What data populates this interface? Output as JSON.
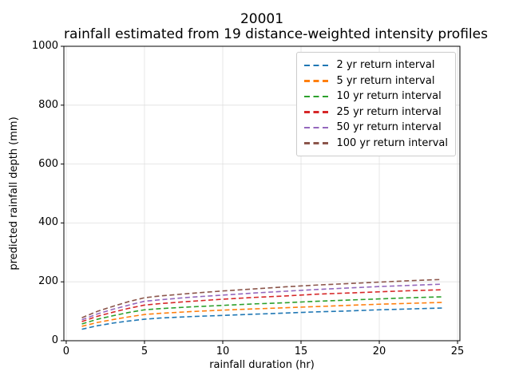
{
  "title": {
    "line1": "20001",
    "line2": "rainfall estimated from 19 distance-weighted intensity profiles"
  },
  "chart_data": {
    "type": "line",
    "title": "20001\nrainfall estimated from 19 distance-weighted intensity profiles",
    "xlabel": "rainfall duration (hr)",
    "ylabel": "predicted rainfall depth (mm)",
    "xlim": [
      -0.15,
      25.15
    ],
    "ylim": [
      0,
      1000
    ],
    "xticks": [
      0,
      5,
      10,
      15,
      20,
      25
    ],
    "yticks": [
      0,
      200,
      400,
      600,
      800,
      1000
    ],
    "grid": true,
    "grid_color": "#e0e0e0",
    "line_style": "dashed",
    "legend_position": "upper right",
    "x": [
      1,
      2,
      3,
      4,
      5,
      6,
      8,
      10,
      12,
      14,
      16,
      18,
      20,
      22,
      24
    ],
    "series": [
      {
        "name": "2 yr return interval",
        "color": "#1f77b4",
        "values": [
          39,
          51,
          60,
          67,
          73,
          77,
          82,
          86,
          90,
          94,
          98,
          101,
          105,
          108,
          111
        ]
      },
      {
        "name": "5 yr return interval",
        "color": "#ff7f0e",
        "values": [
          49,
          62,
          72,
          81,
          89,
          93,
          99,
          104,
          108,
          112,
          116,
          120,
          124,
          127,
          130
        ]
      },
      {
        "name": "10 yr return interval",
        "color": "#2ca02c",
        "values": [
          57,
          73,
          85,
          96,
          105,
          109,
          115,
          120,
          125,
          129,
          134,
          138,
          142,
          146,
          149
        ]
      },
      {
        "name": "25 yr return interval",
        "color": "#d62728",
        "values": [
          65,
          83,
          97,
          110,
          121,
          126,
          134,
          141,
          147,
          152,
          158,
          162,
          166,
          170,
          173
        ]
      },
      {
        "name": "50 yr return interval",
        "color": "#9467bd",
        "values": [
          71,
          91,
          107,
          121,
          134,
          139,
          148,
          155,
          162,
          168,
          174,
          179,
          184,
          188,
          192
        ]
      },
      {
        "name": "100 yr return interval",
        "color": "#8c564b",
        "values": [
          78,
          100,
          117,
          133,
          146,
          152,
          161,
          169,
          176,
          183,
          189,
          194,
          199,
          204,
          208
        ]
      }
    ]
  }
}
